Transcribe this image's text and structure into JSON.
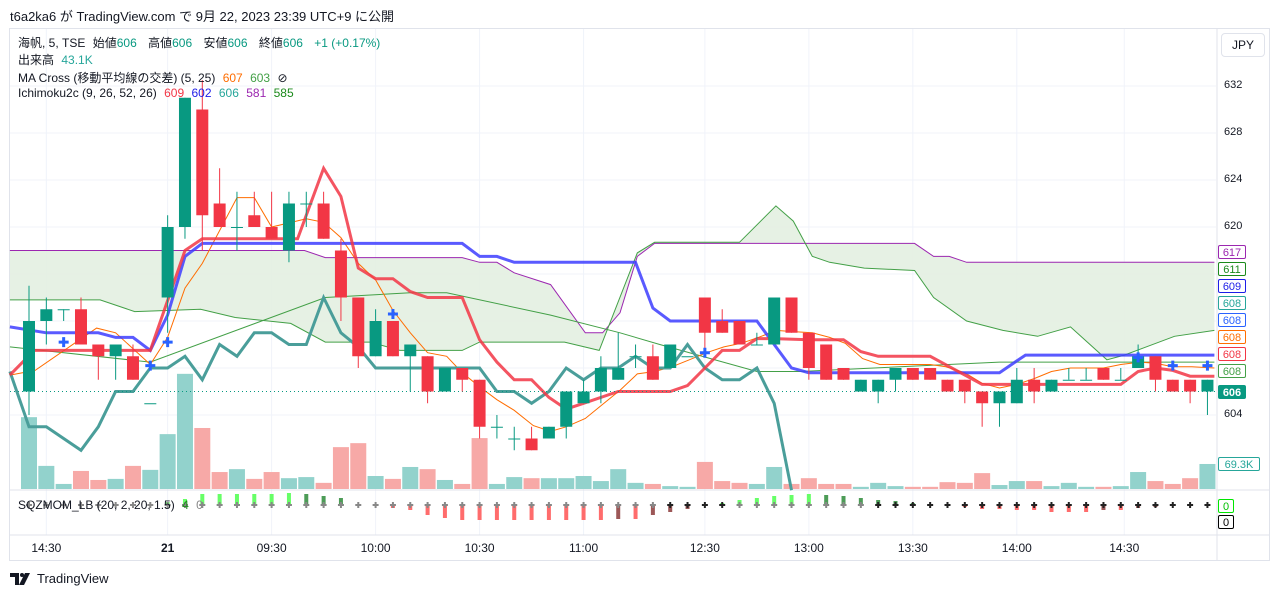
{
  "publish_line": "t6a2ka6 が TradingView.com で 9月 22, 2023 23:39 UTC+9 に公開",
  "currency_button": "JPY",
  "legend": {
    "symbol": "海帆, 5, TSE",
    "open_label": "始値",
    "open": "606",
    "high_label": "高値",
    "high": "606",
    "low_label": "安値",
    "low": "606",
    "close_label": "終値",
    "close": "606",
    "change": "+1 (+0.17%)",
    "volume_label": "出来高",
    "volume": "43.1K",
    "ma_cross_name": "MA Cross (移動平均線の交差) (5, 25)",
    "ma_fast": "607",
    "ma_slow": "603",
    "ma_cross_icon": "⊘",
    "ichimoku_name": "Ichimoku2c (9, 26, 52, 26)",
    "ichi_v1": "609",
    "ichi_v2": "602",
    "ichi_v3": "606",
    "ichi_v4": "581",
    "ichi_v5": "585",
    "sqz_name": "SQZMOM_LB (20, 2, 20, 1.5)",
    "sqz_v1": "4",
    "sqz_v2": "0"
  },
  "price_ticks": [
    "632",
    "628",
    "624",
    "620",
    "604"
  ],
  "price_labels": [
    {
      "text": "617",
      "color": "#9c27b0"
    },
    {
      "text": "611",
      "color": "#1b8a1b"
    },
    {
      "text": "609",
      "color": "#1e1ee8"
    },
    {
      "text": "608",
      "color": "#26a69a"
    },
    {
      "text": "608",
      "color": "#2962ff"
    },
    {
      "text": "608",
      "color": "#ff6d00"
    },
    {
      "text": "608",
      "color": "#f23645"
    },
    {
      "text": "608",
      "color": "#43a047"
    }
  ],
  "last_price": "606",
  "volume_label": "69.3K",
  "sqz_labels": [
    {
      "text": "0",
      "color": "#00e600"
    },
    {
      "text": "0",
      "color": "#000000"
    }
  ],
  "time_labels": [
    "14:30",
    "21",
    "09:30",
    "10:00",
    "10:30",
    "11:00",
    "12:30",
    "13:00",
    "13:30",
    "14:00",
    "14:30"
  ],
  "time_label_bars": [
    1,
    8,
    14,
    20,
    26,
    32,
    39,
    45,
    51,
    57,
    63.2
  ],
  "footer_brand": "TradingView",
  "colors": {
    "up": "#089981",
    "down": "#f23645",
    "vol_up": "#92d2cc",
    "vol_down": "#f7a9a7",
    "tenkan": "#f23645",
    "kijun": "#3d3dff",
    "chikou": "#4a9e9a",
    "spanA": "#43a047",
    "spanB": "#9c27b0",
    "cloud": "#e3f0e1",
    "ma5": "#ff6d00",
    "ma25": "#43a047",
    "cross": "#2962ff"
  },
  "chart_data": {
    "type": "candlestick",
    "ylim": [
      600,
      633
    ],
    "candles_ohlc": [
      [
        606,
        615,
        604,
        612
      ],
      [
        612,
        614,
        610,
        613
      ],
      [
        613,
        613,
        612,
        613
      ],
      [
        613,
        614,
        610,
        610
      ],
      [
        610,
        610,
        607,
        609
      ],
      [
        609,
        610,
        607,
        610
      ],
      [
        609,
        610,
        607,
        607
      ],
      [
        605,
        605,
        605,
        605
      ],
      [
        614,
        621,
        611,
        620
      ],
      [
        620,
        631,
        619,
        631
      ],
      [
        630,
        632.5,
        618,
        621
      ],
      [
        622,
        625,
        620,
        620
      ],
      [
        620,
        623,
        618,
        620
      ],
      [
        621,
        623,
        620,
        620
      ],
      [
        620,
        623,
        619,
        619
      ],
      [
        618,
        623,
        617,
        622
      ],
      [
        622,
        623,
        620,
        622
      ],
      [
        622,
        623,
        619,
        619
      ],
      [
        618,
        619,
        612,
        614
      ],
      [
        614,
        614,
        608,
        609
      ],
      [
        609,
        613,
        609,
        612
      ],
      [
        612,
        612,
        609,
        609
      ],
      [
        609,
        610,
        606,
        610
      ],
      [
        609,
        609,
        605,
        606
      ],
      [
        606,
        608,
        606,
        608
      ],
      [
        608,
        608,
        606,
        607
      ],
      [
        607,
        607,
        602,
        603
      ],
      [
        603,
        604,
        602,
        603
      ],
      [
        602,
        603,
        601,
        602
      ],
      [
        602,
        603,
        601,
        601
      ],
      [
        602,
        603,
        602,
        603
      ],
      [
        603,
        606,
        602,
        606
      ],
      [
        605,
        607,
        605,
        606
      ],
      [
        606,
        609,
        605,
        608
      ],
      [
        607,
        611,
        607,
        608
      ],
      [
        609,
        610,
        608,
        609
      ],
      [
        609,
        610,
        607,
        607
      ],
      [
        608,
        610,
        608,
        610
      ],
      [
        609,
        609,
        609,
        609
      ],
      [
        614,
        614,
        609,
        611
      ],
      [
        612,
        613,
        611,
        611
      ],
      [
        612,
        612,
        610,
        610
      ],
      [
        610,
        611,
        610,
        610
      ],
      [
        610,
        614,
        610,
        614
      ],
      [
        614,
        614,
        611,
        611
      ],
      [
        611,
        611,
        607,
        608
      ],
      [
        610,
        610,
        607,
        607
      ],
      [
        608,
        608,
        607,
        607
      ],
      [
        606,
        607,
        606,
        607
      ],
      [
        606,
        607,
        605,
        607
      ],
      [
        607,
        608,
        606,
        608
      ],
      [
        608,
        608,
        607,
        607
      ],
      [
        608,
        608,
        607,
        607
      ],
      [
        607,
        607,
        606,
        606
      ],
      [
        607,
        607,
        605,
        606
      ],
      [
        606,
        606,
        603,
        605
      ],
      [
        605,
        606,
        603,
        606
      ],
      [
        605,
        608,
        605,
        607
      ],
      [
        607,
        608,
        605,
        606
      ],
      [
        606,
        607,
        606,
        607
      ],
      [
        607,
        608,
        607,
        607
      ],
      [
        607,
        608,
        607,
        607
      ],
      [
        608,
        608,
        607,
        607
      ],
      [
        607,
        608,
        607,
        607
      ],
      [
        608,
        610,
        608,
        609
      ],
      [
        609,
        609,
        606,
        607
      ],
      [
        607,
        607,
        606,
        606
      ],
      [
        607,
        607,
        605,
        606
      ],
      [
        606,
        607,
        604,
        607
      ]
    ],
    "volume_k": [
      199,
      64,
      14,
      50,
      25,
      28,
      64,
      53,
      152,
      319,
      169,
      47,
      55,
      28,
      47,
      30,
      33,
      17,
      116,
      127,
      36,
      28,
      61,
      55,
      25,
      14,
      141,
      14,
      33,
      30,
      30,
      30,
      36,
      22,
      55,
      17,
      14,
      8,
      6,
      75,
      22,
      17,
      14,
      61,
      14,
      30,
      14,
      14,
      6,
      17,
      8,
      6,
      6,
      19,
      17,
      44,
      11,
      22,
      22,
      8,
      17,
      6,
      6,
      8,
      47,
      22,
      14,
      30,
      69.3
    ],
    "sqz_mom": [
      0,
      0,
      0,
      0,
      0,
      0,
      0,
      0,
      3,
      6,
      11,
      11,
      11,
      11,
      11,
      12,
      11,
      9,
      7,
      0,
      0,
      -3,
      -5,
      -10,
      -13,
      -15,
      -15,
      -15,
      -15,
      -15,
      -15,
      -15,
      -15,
      -15,
      -14,
      -14,
      -10,
      -7,
      -4,
      0,
      2,
      5,
      7,
      9,
      10,
      11,
      10,
      9,
      7,
      5,
      4,
      2,
      0,
      0,
      -2,
      -4,
      -4,
      -5,
      -5,
      -7,
      -7,
      -7,
      -5,
      -5,
      -3,
      -2,
      0,
      0,
      0
    ],
    "sqz_on_bars": [
      37,
      38,
      39,
      40,
      49,
      50,
      51,
      52,
      53,
      54,
      55,
      56,
      57,
      58,
      59,
      60,
      61,
      62,
      63,
      64,
      65,
      66,
      67,
      68
    ],
    "tenkan": [
      [
        -1.1,
        607.4
      ],
      [
        0.3,
        609.5
      ],
      [
        7,
        609.5
      ],
      [
        9,
        618
      ],
      [
        10,
        619
      ],
      [
        15.5,
        619
      ],
      [
        17,
        625
      ],
      [
        18,
        622.6
      ],
      [
        19,
        616.5
      ],
      [
        20,
        615.6
      ],
      [
        21,
        615.6
      ],
      [
        22,
        614.5
      ],
      [
        23,
        614
      ],
      [
        25,
        614
      ],
      [
        26,
        610.4
      ],
      [
        27,
        608.5
      ],
      [
        28,
        607
      ],
      [
        29,
        607
      ],
      [
        30,
        605.5
      ],
      [
        31,
        604.5
      ],
      [
        32,
        605
      ],
      [
        34,
        606
      ],
      [
        37,
        606
      ],
      [
        38,
        606.5
      ],
      [
        39,
        608
      ],
      [
        40,
        609.5
      ],
      [
        41,
        609.5
      ],
      [
        42,
        610.5
      ],
      [
        43,
        610.5
      ],
      [
        45,
        610.4
      ],
      [
        47,
        610.4
      ],
      [
        48,
        609.4
      ],
      [
        49,
        609
      ],
      [
        52,
        609
      ],
      [
        55,
        606.6
      ],
      [
        63,
        606.6
      ],
      [
        64,
        607.7
      ],
      [
        65,
        608
      ],
      [
        66,
        607.8
      ],
      [
        67,
        607.3
      ],
      [
        68.4,
        607.3
      ]
    ],
    "kijun": [
      [
        -1.1,
        611.5
      ],
      [
        1,
        611
      ],
      [
        4,
        611
      ],
      [
        5,
        610.6
      ],
      [
        6,
        610.6
      ],
      [
        7,
        609.5
      ],
      [
        8,
        612.5
      ],
      [
        9,
        617.5
      ],
      [
        10,
        618.6
      ],
      [
        25,
        618.6
      ],
      [
        26,
        617.5
      ],
      [
        27,
        617.5
      ],
      [
        28,
        617
      ],
      [
        35,
        617
      ],
      [
        36,
        613.1
      ],
      [
        37,
        612
      ],
      [
        42,
        612
      ],
      [
        44,
        608
      ],
      [
        45,
        607.6
      ],
      [
        56,
        607.6
      ],
      [
        57,
        608.6
      ],
      [
        57.5,
        609.1
      ],
      [
        68.4,
        609.1
      ]
    ],
    "chikou": [
      [
        -1.1,
        607.7
      ],
      [
        0,
        603
      ],
      [
        1,
        603
      ],
      [
        3,
        601
      ],
      [
        4,
        603
      ],
      [
        5,
        606
      ],
      [
        6,
        606
      ],
      [
        7,
        608
      ],
      [
        8,
        608
      ],
      [
        9,
        609
      ],
      [
        10,
        607
      ],
      [
        11,
        610
      ],
      [
        12,
        609
      ],
      [
        13,
        611
      ],
      [
        14,
        611
      ],
      [
        15,
        610
      ],
      [
        16,
        610
      ],
      [
        17,
        614
      ],
      [
        18,
        611
      ],
      [
        19,
        609.8
      ],
      [
        20,
        608
      ],
      [
        26,
        608
      ],
      [
        27,
        606
      ],
      [
        28,
        606
      ],
      [
        29,
        605
      ],
      [
        30,
        606
      ],
      [
        31,
        608
      ],
      [
        32,
        607
      ],
      [
        33,
        608
      ],
      [
        34,
        608
      ],
      [
        35,
        609
      ],
      [
        36,
        608
      ],
      [
        37,
        608
      ],
      [
        38,
        610
      ],
      [
        39,
        608
      ],
      [
        40,
        607
      ],
      [
        41,
        607
      ],
      [
        42,
        608
      ],
      [
        43,
        605
      ],
      [
        44,
        597.6
      ]
    ],
    "spanA": [
      [
        -1.1,
        613.8
      ],
      [
        4.1,
        613.8
      ],
      [
        6.1,
        612.8
      ],
      [
        9.9,
        613
      ],
      [
        11.9,
        612.3
      ],
      [
        15.1,
        611.8
      ],
      [
        17.1,
        610.2
      ],
      [
        19.7,
        610.2
      ],
      [
        21.4,
        609.5
      ],
      [
        25,
        609.5
      ],
      [
        26,
        610.2
      ],
      [
        30.9,
        610.2
      ],
      [
        32.9,
        609.5
      ],
      [
        35.1,
        617.8
      ],
      [
        36.1,
        618.7
      ],
      [
        41,
        618.7
      ],
      [
        43.1,
        621.8
      ],
      [
        44.1,
        620.5
      ],
      [
        45.2,
        617.5
      ],
      [
        46.2,
        617
      ],
      [
        48.2,
        616.5
      ],
      [
        51.1,
        616.3
      ],
      [
        52.2,
        614
      ],
      [
        54.1,
        612
      ],
      [
        56.2,
        611.2
      ],
      [
        58.2,
        610.7
      ],
      [
        60.1,
        611.5
      ],
      [
        62.2,
        608.7
      ],
      [
        63.2,
        609.1
      ],
      [
        66.1,
        610.7
      ],
      [
        68.4,
        611.2
      ]
    ],
    "spanB": [
      [
        -1.1,
        618
      ],
      [
        15.9,
        618
      ],
      [
        17.1,
        617.4
      ],
      [
        25,
        617.4
      ],
      [
        26,
        617
      ],
      [
        27,
        617
      ],
      [
        28,
        616.1
      ],
      [
        30.1,
        615.1
      ],
      [
        32.1,
        611
      ],
      [
        33.1,
        611
      ],
      [
        34.1,
        612.7
      ],
      [
        35.1,
        617.5
      ],
      [
        36.1,
        618.6
      ],
      [
        51.1,
        618.6
      ],
      [
        52.2,
        617.5
      ],
      [
        53.1,
        617.5
      ],
      [
        54.1,
        617
      ],
      [
        68.4,
        617
      ]
    ],
    "ma5": [
      [
        -1.1,
        607.4
      ],
      [
        0.35,
        607.8
      ],
      [
        3.9,
        611.4
      ],
      [
        5,
        611
      ],
      [
        7,
        608.3
      ],
      [
        8,
        610.6
      ],
      [
        9,
        614.8
      ],
      [
        10,
        616.9
      ],
      [
        12,
        622.5
      ],
      [
        13,
        622.5
      ],
      [
        14,
        620
      ],
      [
        16,
        620.7
      ],
      [
        17,
        620.4
      ],
      [
        18,
        619.1
      ],
      [
        19,
        616.9
      ],
      [
        20,
        615.5
      ],
      [
        21,
        612.9
      ],
      [
        22,
        611
      ],
      [
        23,
        609.3
      ],
      [
        24.1,
        609
      ],
      [
        25,
        607.6
      ],
      [
        26,
        606.4
      ],
      [
        27,
        605.3
      ],
      [
        28,
        604.4
      ],
      [
        29.1,
        603.1
      ],
      [
        30.1,
        602.6
      ],
      [
        31,
        603
      ],
      [
        32.1,
        603.7
      ],
      [
        33.1,
        604.9
      ],
      [
        34.1,
        606.1
      ],
      [
        35.1,
        607.5
      ],
      [
        36.1,
        607.7
      ],
      [
        37.1,
        608.1
      ],
      [
        38.1,
        608.7
      ],
      [
        39.1,
        609.3
      ],
      [
        40.1,
        609.8
      ],
      [
        41.1,
        610.1
      ],
      [
        42.1,
        610.6
      ],
      [
        43.1,
        611.2
      ],
      [
        44.1,
        611.1
      ],
      [
        45.2,
        611
      ],
      [
        46.2,
        610.6
      ],
      [
        47.1,
        610.1
      ],
      [
        48.1,
        608.8
      ],
      [
        49.1,
        608.3
      ],
      [
        52,
        608.3
      ],
      [
        52.9,
        608.1
      ],
      [
        54,
        607.6
      ],
      [
        55,
        606.7
      ],
      [
        56,
        606.3
      ],
      [
        57,
        606.6
      ],
      [
        58,
        607.1
      ],
      [
        59,
        607.7
      ],
      [
        60.1,
        608
      ],
      [
        62,
        608
      ],
      [
        63,
        608.3
      ],
      [
        64.1,
        608.5
      ],
      [
        65,
        608.4
      ],
      [
        66,
        608.1
      ],
      [
        67.1,
        608.1
      ],
      [
        68.4,
        608
      ]
    ],
    "ma25": [
      [
        -1.1,
        609.8
      ],
      [
        7,
        608.5
      ],
      [
        17.1,
        614
      ],
      [
        22,
        614.4
      ],
      [
        24.1,
        614.4
      ],
      [
        30.1,
        612.5
      ],
      [
        34.1,
        611
      ],
      [
        36.4,
        610
      ],
      [
        42,
        607.7
      ],
      [
        44.5,
        607.7
      ],
      [
        56,
        608.5
      ],
      [
        68.4,
        608.5
      ]
    ],
    "cross_markers": [
      [
        2,
        610.2
      ],
      [
        7,
        608.2
      ],
      [
        8,
        610.2
      ],
      [
        21,
        612.6
      ],
      [
        39,
        609.3
      ],
      [
        64,
        608.9
      ],
      [
        66,
        608.2
      ],
      [
        68,
        608.2
      ]
    ]
  }
}
